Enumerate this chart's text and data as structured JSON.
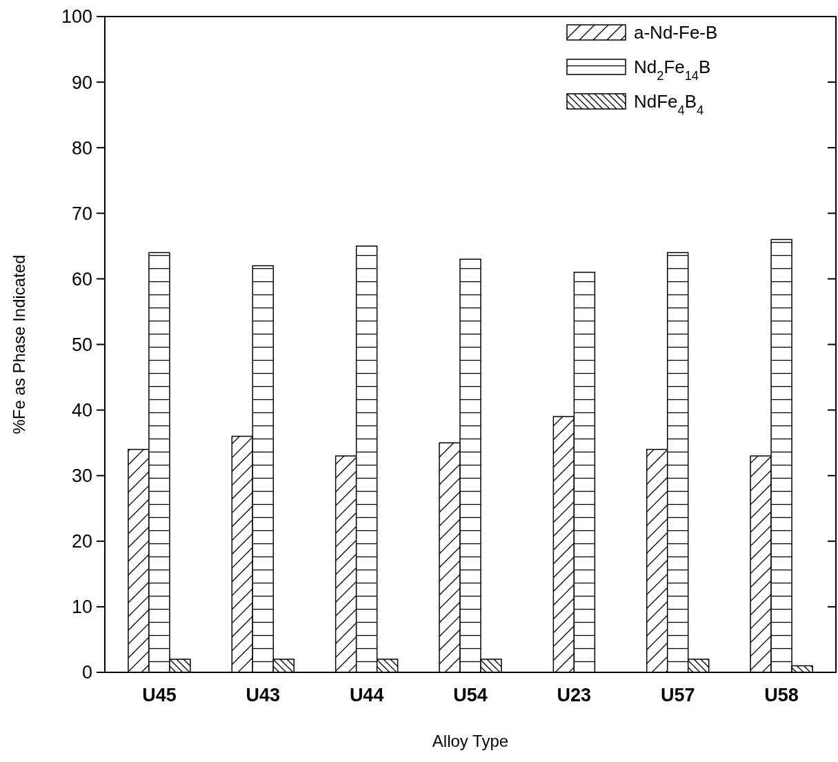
{
  "chart_data": {
    "type": "bar",
    "xlabel": "Alloy Type",
    "ylabel": "%Fe as Phase Indicated",
    "categories": [
      "U45",
      "U43",
      "U44",
      "U54",
      "U23",
      "U57",
      "U58"
    ],
    "series": [
      {
        "name": "a-Nd-Fe-B",
        "color": "#ffffff",
        "values": [
          34,
          36,
          33,
          35,
          39,
          34,
          33
        ]
      },
      {
        "name": "Nd$_{2}$Fe$_{14}$B",
        "color": "#ffffff",
        "values": [
          64,
          62,
          65,
          63,
          61,
          64,
          66
        ]
      },
      {
        "name": "NdFe$_{4}$B$_{4}$",
        "color": "#ffffff",
        "values": [
          2,
          2,
          2,
          2,
          null,
          2,
          1
        ]
      }
    ],
    "ylim": [
      0,
      100
    ],
    "yticks": [
      0,
      10,
      20,
      30,
      40,
      50,
      60,
      70,
      80,
      90,
      100
    ],
    "grid": false,
    "legend": "top right"
  }
}
